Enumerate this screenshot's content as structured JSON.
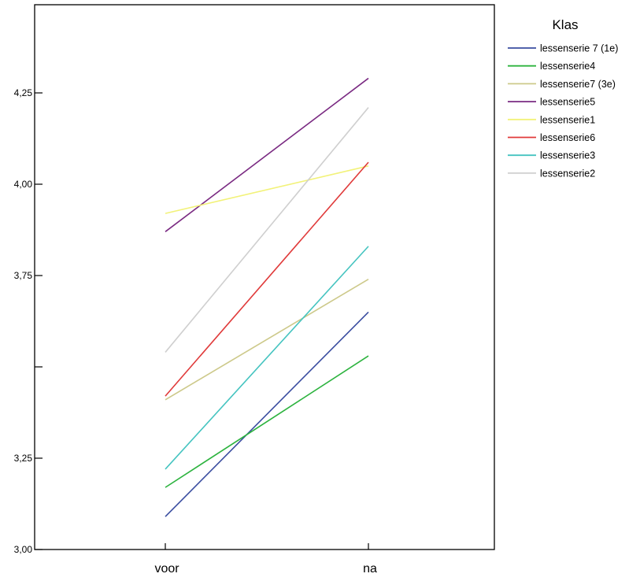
{
  "chart_data": {
    "type": "line",
    "categories": [
      "voor",
      "na"
    ],
    "ylim": [
      3.0,
      4.5
    ],
    "yticks": [
      {
        "value": 3.0,
        "label": "3,00"
      },
      {
        "value": 3.25,
        "label": "3,25"
      },
      {
        "value": 3.5,
        "label": ""
      },
      {
        "value": 3.75,
        "label": "3,75"
      },
      {
        "value": 4.0,
        "label": "4,00"
      },
      {
        "value": 4.25,
        "label": "4,25"
      }
    ],
    "legend_title": "Klas",
    "legend_position": "right",
    "grid": false,
    "series": [
      {
        "name": "lessenserie 7 (1e)",
        "color": "#3a4da0",
        "values": [
          3.09,
          3.65
        ]
      },
      {
        "name": "lessenserie4",
        "color": "#2db33f",
        "values": [
          3.17,
          3.53
        ]
      },
      {
        "name": "lessenserie7 (3e)",
        "color": "#cdc98a",
        "values": [
          3.41,
          3.74
        ]
      },
      {
        "name": "lessenserie5",
        "color": "#7a2a82",
        "values": [
          3.87,
          4.29
        ]
      },
      {
        "name": "lessenserie1",
        "color": "#f2f279",
        "values": [
          3.92,
          4.05
        ]
      },
      {
        "name": "lessenserie6",
        "color": "#e03a3a",
        "values": [
          3.42,
          4.06
        ]
      },
      {
        "name": "lessenserie3",
        "color": "#45c4c0",
        "values": [
          3.22,
          3.83
        ]
      },
      {
        "name": "lessenserie2",
        "color": "#cfcfcf",
        "values": [
          3.54,
          4.21
        ]
      }
    ]
  }
}
